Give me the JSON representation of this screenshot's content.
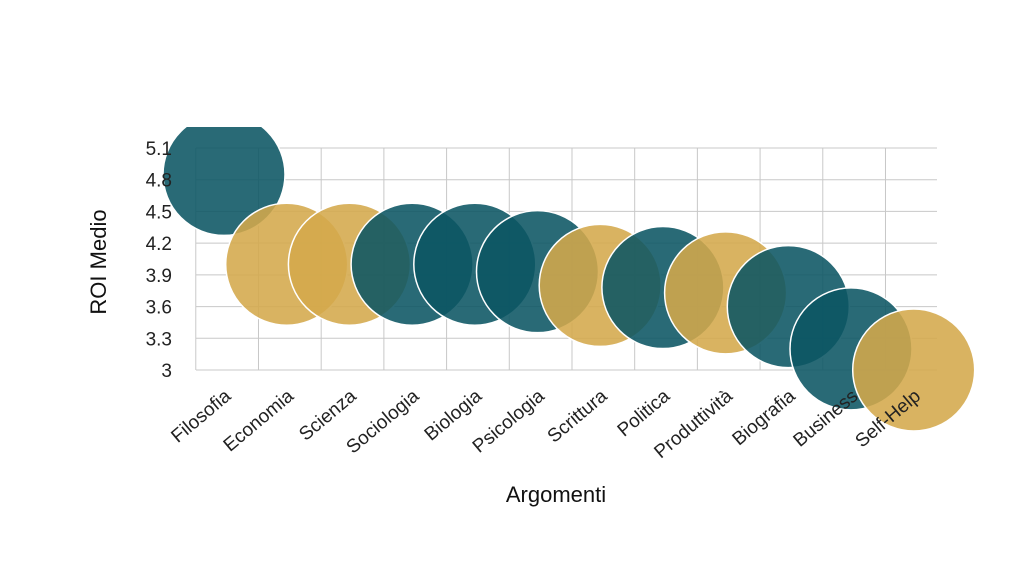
{
  "chart_data": {
    "type": "scatter",
    "xlabel": "Argomenti",
    "ylabel": "ROI Medio",
    "categories": [
      "Filosofia",
      "Economia",
      "Scienza",
      "Sociologia",
      "Biologia",
      "Psicologia",
      "Scrittura",
      "Politica",
      "Produttività",
      "Biografia",
      "Business",
      "Self-Help"
    ],
    "values": [
      4.85,
      4.0,
      4.0,
      4.0,
      4.0,
      3.93,
      3.8,
      3.78,
      3.73,
      3.6,
      3.2,
      3.0
    ],
    "bubble_colors": [
      "#0b5563",
      "#d4a84b",
      "#d4a84b",
      "#0b5563",
      "#0b5563",
      "#0b5563",
      "#d4a84b",
      "#0b5563",
      "#d4a84b",
      "#0b5563",
      "#0b5563",
      "#d4a84b"
    ],
    "y_ticks": [
      "3",
      "3.3",
      "3.6",
      "3.9",
      "4.2",
      "4.5",
      "4.8",
      "5.1"
    ],
    "ylim": [
      3,
      5.1
    ],
    "grid": true,
    "colors": {
      "teal": "#0b5563",
      "gold": "#d4a84b"
    }
  }
}
